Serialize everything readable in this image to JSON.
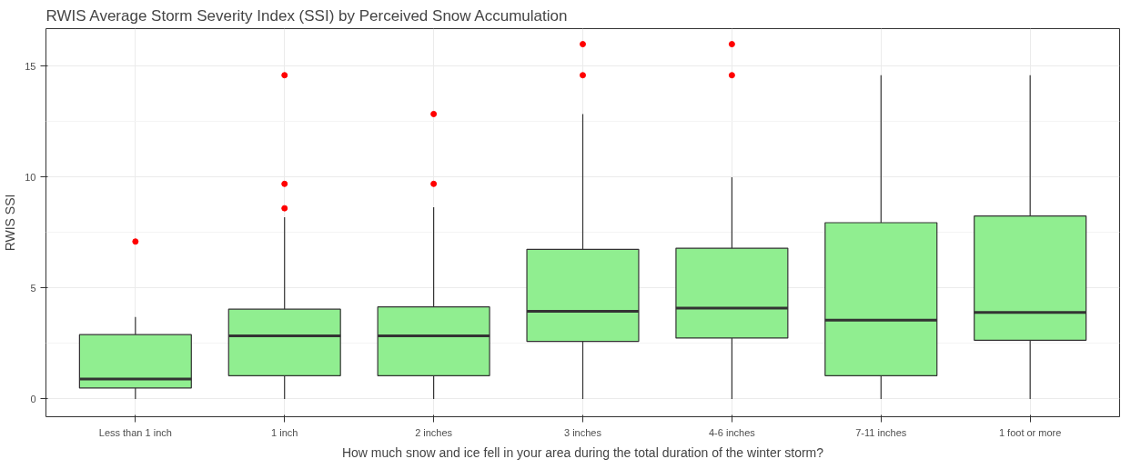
{
  "chart_data": {
    "type": "box",
    "title": "RWIS Average Storm Severity Index (SSI) by Perceived Snow Accumulation",
    "xlabel": "How much snow and ice fell in your area during the total duration of the winter storm?",
    "ylabel": "RWIS SSI",
    "categories": [
      "Less than 1 inch",
      "1 inch",
      "2 inches",
      "3 inches",
      "4-6 inches",
      "7-11 inches",
      "1 foot or more"
    ],
    "series": [
      {
        "color": "#90ee90",
        "boxes": [
          {
            "low": 0,
            "q1": 0.5,
            "median": 0.9,
            "q3": 2.9,
            "high": 3.7,
            "outliers": [
              7.1
            ]
          },
          {
            "low": 0,
            "q1": 1.05,
            "median": 2.85,
            "q3": 4.05,
            "high": 8.2,
            "outliers": [
              8.6,
              9.7,
              14.6
            ]
          },
          {
            "low": 0,
            "q1": 1.05,
            "median": 2.85,
            "q3": 4.15,
            "high": 8.65,
            "outliers": [
              9.7,
              12.85
            ]
          },
          {
            "low": 0,
            "q1": 2.6,
            "median": 3.95,
            "q3": 6.75,
            "high": 12.85,
            "outliers": [
              14.6,
              16
            ]
          },
          {
            "low": 0,
            "q1": 2.75,
            "median": 4.1,
            "q3": 6.8,
            "high": 10,
            "outliers": [
              14.6,
              16
            ]
          },
          {
            "low": 0,
            "q1": 1.05,
            "median": 3.55,
            "q3": 7.95,
            "high": 14.6
          },
          {
            "low": 0,
            "q1": 2.65,
            "median": 3.9,
            "q3": 8.25,
            "high": 14.6
          }
        ]
      }
    ],
    "ylim": [
      -0.8,
      16.7
    ],
    "yticks": [
      0,
      5,
      10,
      15
    ],
    "grid": true
  }
}
